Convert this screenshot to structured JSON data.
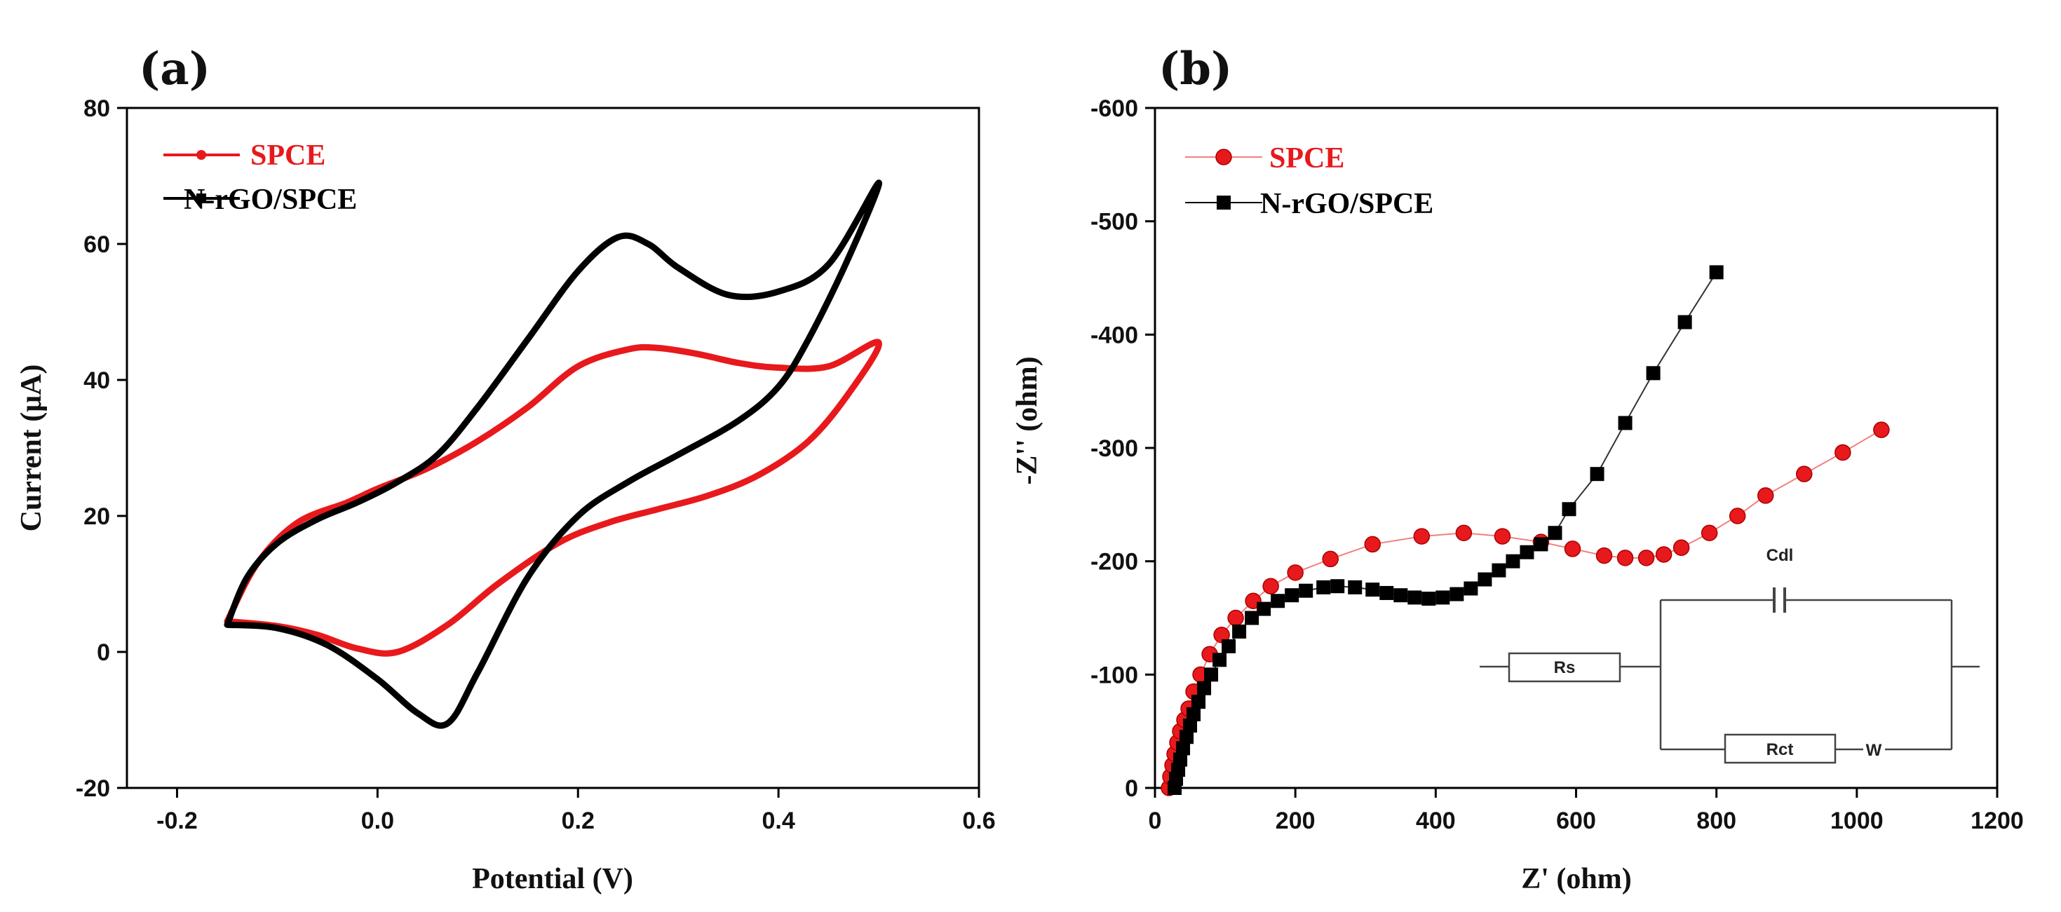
{
  "chart_data": [
    {
      "id": "a",
      "panel_label": "(a)",
      "type": "line",
      "title": "",
      "xlabel": "Potential (V)",
      "ylabel": "Current (μA)",
      "xlim": [
        -0.25,
        0.6
      ],
      "ylim": [
        -20,
        80
      ],
      "xticks": [
        -0.2,
        0.0,
        0.2,
        0.4,
        0.6
      ],
      "xtick_labels": [
        "-0.2",
        "0.0",
        "0.2",
        "0.4",
        "0.6"
      ],
      "yticks": [
        -20,
        0,
        20,
        40,
        60,
        80
      ],
      "ytick_labels": [
        "-20",
        "0",
        "20",
        "40",
        "60",
        "80"
      ],
      "legend": [
        {
          "name": "SPCE",
          "color": "#e8191c",
          "marker": "dot"
        },
        {
          "name": "N-rGO/SPCE",
          "color": "#000000",
          "marker": "square"
        }
      ],
      "series": [
        {
          "name": "SPCE",
          "color": "#e8191c",
          "points": [
            [
              -0.15,
              4.5
            ],
            [
              -0.12,
              13
            ],
            [
              -0.08,
              19
            ],
            [
              -0.03,
              22
            ],
            [
              0.0,
              24
            ],
            [
              0.05,
              27
            ],
            [
              0.1,
              31
            ],
            [
              0.15,
              36
            ],
            [
              0.2,
              42
            ],
            [
              0.25,
              44.5
            ],
            [
              0.28,
              44.7
            ],
            [
              0.32,
              43.8
            ],
            [
              0.36,
              42.5
            ],
            [
              0.4,
              41.8
            ],
            [
              0.45,
              42
            ],
            [
              0.5,
              45.5
            ],
            [
              0.47,
              38
            ],
            [
              0.43,
              31
            ],
            [
              0.38,
              26
            ],
            [
              0.33,
              23
            ],
            [
              0.28,
              21
            ],
            [
              0.23,
              19
            ],
            [
              0.18,
              16
            ],
            [
              0.12,
              10
            ],
            [
              0.07,
              4
            ],
            [
              0.02,
              0
            ],
            [
              -0.02,
              0.5
            ],
            [
              -0.06,
              2.5
            ],
            [
              -0.1,
              3.8
            ],
            [
              -0.15,
              4.5
            ]
          ]
        },
        {
          "name": "N-rGO/SPCE",
          "color": "#000000",
          "points": [
            [
              -0.15,
              4
            ],
            [
              -0.13,
              11
            ],
            [
              -0.1,
              16
            ],
            [
              -0.06,
              19.5
            ],
            [
              -0.02,
              22
            ],
            [
              0.02,
              25
            ],
            [
              0.06,
              29
            ],
            [
              0.1,
              36
            ],
            [
              0.15,
              46
            ],
            [
              0.2,
              56
            ],
            [
              0.24,
              61
            ],
            [
              0.27,
              60
            ],
            [
              0.3,
              56.5
            ],
            [
              0.35,
              52.5
            ],
            [
              0.4,
              53
            ],
            [
              0.45,
              57
            ],
            [
              0.5,
              69
            ],
            [
              0.47,
              58
            ],
            [
              0.43,
              46
            ],
            [
              0.4,
              39
            ],
            [
              0.36,
              34
            ],
            [
              0.3,
              29
            ],
            [
              0.25,
              25
            ],
            [
              0.2,
              20
            ],
            [
              0.15,
              11
            ],
            [
              0.1,
              -3
            ],
            [
              0.07,
              -10.5
            ],
            [
              0.04,
              -9
            ],
            [
              0.0,
              -4
            ],
            [
              -0.05,
              1
            ],
            [
              -0.1,
              3.5
            ],
            [
              -0.15,
              4
            ]
          ]
        }
      ]
    },
    {
      "id": "b",
      "panel_label": "(b)",
      "type": "scatter",
      "title": "",
      "xlabel": "Z' (ohm)",
      "ylabel": "-Z'' (ohm)",
      "xlim": [
        0,
        1200
      ],
      "ylim": [
        0,
        -600
      ],
      "xticks": [
        0,
        200,
        400,
        600,
        800,
        1000,
        1200
      ],
      "xtick_labels": [
        "0",
        "200",
        "400",
        "600",
        "800",
        "1000",
        "1200"
      ],
      "yticks": [
        0,
        -100,
        -200,
        -300,
        -400,
        -500,
        -600
      ],
      "ytick_labels": [
        "0",
        "-100",
        "-200",
        "-300",
        "-400",
        "-500",
        "-600"
      ],
      "legend": [
        {
          "name": "SPCE",
          "color": "#e8191c",
          "marker": "circle"
        },
        {
          "name": "N-rGO/SPCE",
          "color": "#000000",
          "marker": "square"
        }
      ],
      "series": [
        {
          "name": "SPCE",
          "color": "#e8191c",
          "marker": "circle",
          "points": [
            [
              20,
              0
            ],
            [
              22,
              -10
            ],
            [
              25,
              -20
            ],
            [
              28,
              -30
            ],
            [
              32,
              -40
            ],
            [
              36,
              -50
            ],
            [
              42,
              -60
            ],
            [
              48,
              -70
            ],
            [
              55,
              -85
            ],
            [
              65,
              -100
            ],
            [
              78,
              -118
            ],
            [
              95,
              -135
            ],
            [
              115,
              -150
            ],
            [
              140,
              -165
            ],
            [
              165,
              -178
            ],
            [
              200,
              -190
            ],
            [
              250,
              -202
            ],
            [
              310,
              -215
            ],
            [
              380,
              -222
            ],
            [
              440,
              -225
            ],
            [
              495,
              -222
            ],
            [
              550,
              -217
            ],
            [
              595,
              -211
            ],
            [
              640,
              -205
            ],
            [
              670,
              -203
            ],
            [
              700,
              -203
            ],
            [
              725,
              -206
            ],
            [
              750,
              -212
            ],
            [
              790,
              -225
            ],
            [
              830,
              -240
            ],
            [
              870,
              -258
            ],
            [
              925,
              -277
            ],
            [
              980,
              -296
            ],
            [
              1035,
              -316
            ]
          ]
        },
        {
          "name": "N-rGO/SPCE",
          "color": "#000000",
          "marker": "square",
          "points": [
            [
              28,
              0
            ],
            [
              30,
              -8
            ],
            [
              33,
              -16
            ],
            [
              36,
              -25
            ],
            [
              40,
              -35
            ],
            [
              45,
              -45
            ],
            [
              50,
              -55
            ],
            [
              55,
              -65
            ],
            [
              62,
              -76
            ],
            [
              70,
              -88
            ],
            [
              80,
              -100
            ],
            [
              92,
              -113
            ],
            [
              105,
              -125
            ],
            [
              120,
              -138
            ],
            [
              138,
              -150
            ],
            [
              155,
              -158
            ],
            [
              175,
              -165
            ],
            [
              195,
              -170
            ],
            [
              215,
              -174
            ],
            [
              240,
              -177
            ],
            [
              260,
              -178
            ],
            [
              285,
              -177
            ],
            [
              310,
              -175
            ],
            [
              330,
              -172
            ],
            [
              350,
              -170
            ],
            [
              370,
              -168
            ],
            [
              390,
              -167
            ],
            [
              410,
              -168
            ],
            [
              430,
              -171
            ],
            [
              450,
              -176
            ],
            [
              470,
              -184
            ],
            [
              490,
              -192
            ],
            [
              510,
              -200
            ],
            [
              530,
              -208
            ],
            [
              550,
              -215
            ],
            [
              570,
              -225
            ],
            [
              590,
              -246
            ],
            [
              630,
              -277
            ],
            [
              670,
              -322
            ],
            [
              710,
              -366
            ],
            [
              755,
              -411
            ],
            [
              800,
              -455
            ]
          ]
        }
      ]
    }
  ],
  "circuit": {
    "labels": {
      "rs": "Rs",
      "cdl": "Cdl",
      "rct": "Rct",
      "w": "W"
    }
  }
}
